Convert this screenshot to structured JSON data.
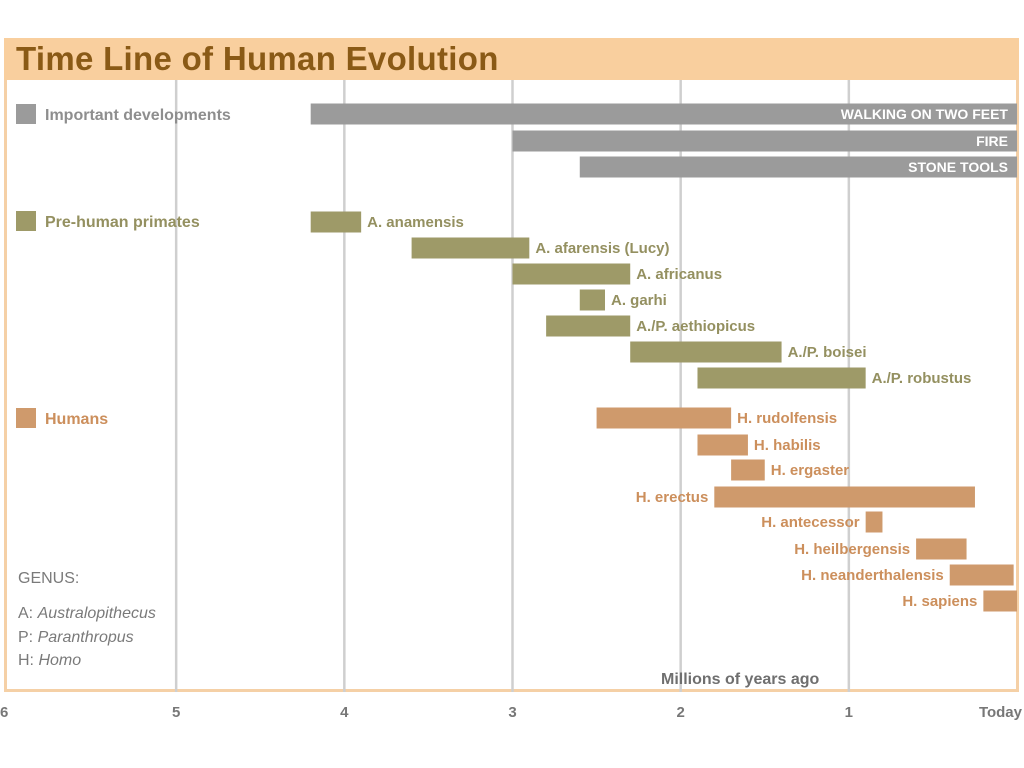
{
  "chart_data": {
    "type": "bar",
    "orientation": "horizontal-range",
    "title": "Time Line of Human Evolution",
    "xlabel": "Millions of years ago",
    "x_axis": {
      "reversed": true,
      "range": [
        6,
        0
      ],
      "ticks": [
        6,
        5,
        4,
        3,
        2,
        1,
        0
      ],
      "tick_labels": [
        "6",
        "5",
        "4",
        "3",
        "2",
        "1",
        "Today"
      ]
    },
    "grid": true,
    "categories": [
      {
        "name": "Important developments",
        "color": "#9b9b9b",
        "label_color": "#8e8e8e",
        "items": [
          {
            "label": "WALKING ON TWO FEET",
            "start": 4.2,
            "end": 0
          },
          {
            "label": "FIRE",
            "start": 3.0,
            "end": 0
          },
          {
            "label": "STONE TOOLS",
            "start": 2.6,
            "end": 0
          }
        ]
      },
      {
        "name": "Pre-human primates",
        "color": "#9e9a68",
        "label_color": "#949060",
        "items": [
          {
            "label": "A. anamensis",
            "start": 4.2,
            "end": 3.9
          },
          {
            "label": "A. afarensis (Lucy)",
            "start": 3.6,
            "end": 2.9
          },
          {
            "label": "A. africanus",
            "start": 3.0,
            "end": 2.3
          },
          {
            "label": "A. garhi",
            "start": 2.6,
            "end": 2.45
          },
          {
            "label": "A./P. aethiopicus",
            "start": 2.8,
            "end": 2.3
          },
          {
            "label": "A./P. boisei",
            "start": 2.3,
            "end": 1.4
          },
          {
            "label": "A./P. robustus",
            "start": 1.9,
            "end": 0.9
          }
        ]
      },
      {
        "name": "Humans",
        "color": "#cf9a6c",
        "label_color": "#cc8f5c",
        "items": [
          {
            "label": "H. rudolfensis",
            "start": 2.5,
            "end": 1.7
          },
          {
            "label": "H. habilis",
            "start": 1.9,
            "end": 1.6
          },
          {
            "label": "H. ergaster",
            "start": 1.7,
            "end": 1.5
          },
          {
            "label": "H. erectus",
            "start": 1.8,
            "end": 0.25
          },
          {
            "label": "H. antecessor",
            "start": 0.9,
            "end": 0.8
          },
          {
            "label": "H. heilbergensis",
            "start": 0.6,
            "end": 0.3
          },
          {
            "label": "H. neanderthalensis",
            "start": 0.4,
            "end": 0.02
          },
          {
            "label": "H. sapiens",
            "start": 0.2,
            "end": 0
          }
        ]
      }
    ],
    "legend_note": {
      "heading": "GENUS:",
      "entries": [
        {
          "abbr": "A:",
          "name": "Australopithecus"
        },
        {
          "abbr": "P:",
          "name": "Paranthropus"
        },
        {
          "abbr": "H:",
          "name": "Homo"
        }
      ]
    }
  }
}
